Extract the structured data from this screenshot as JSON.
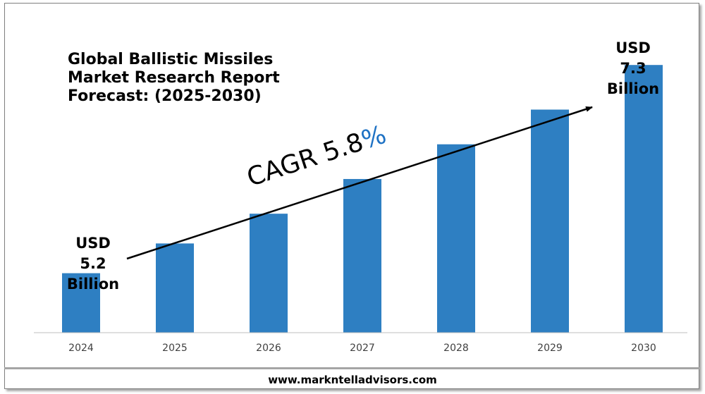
{
  "header": {
    "title_lines": [
      "Global Ballistic Missiles",
      "Market Research Report",
      "Forecast: (2025-2030)"
    ]
  },
  "annotations": {
    "start_value_lines": [
      "USD",
      "5.2",
      "Billion"
    ],
    "end_value_lines": [
      "USD",
      "7.3",
      "Billion"
    ],
    "cagr_prefix": "CAGR 5.8",
    "cagr_suffix": "%"
  },
  "footer": {
    "website": "www.markntelladvisors.com"
  },
  "colors": {
    "bar": "#2e7fc2",
    "cagr_accent": "#1f72c4",
    "axis": "#bfbfbf"
  },
  "chart_data": {
    "type": "bar",
    "title": "Global Ballistic Missiles Market Research Report Forecast: (2025-2030)",
    "categories": [
      "2024",
      "2025",
      "2026",
      "2027",
      "2028",
      "2029",
      "2030"
    ],
    "values": [
      5.2,
      5.5,
      5.8,
      6.15,
      6.5,
      6.85,
      7.3
    ],
    "units": "USD Billion",
    "xlabel": "",
    "ylabel": "",
    "ylim": [
      4.6,
      7.6
    ],
    "grid": false,
    "legend": "none",
    "annotations": [
      "USD 5.2 Billion",
      "USD 7.3 Billion",
      "CAGR 5.8%"
    ]
  }
}
